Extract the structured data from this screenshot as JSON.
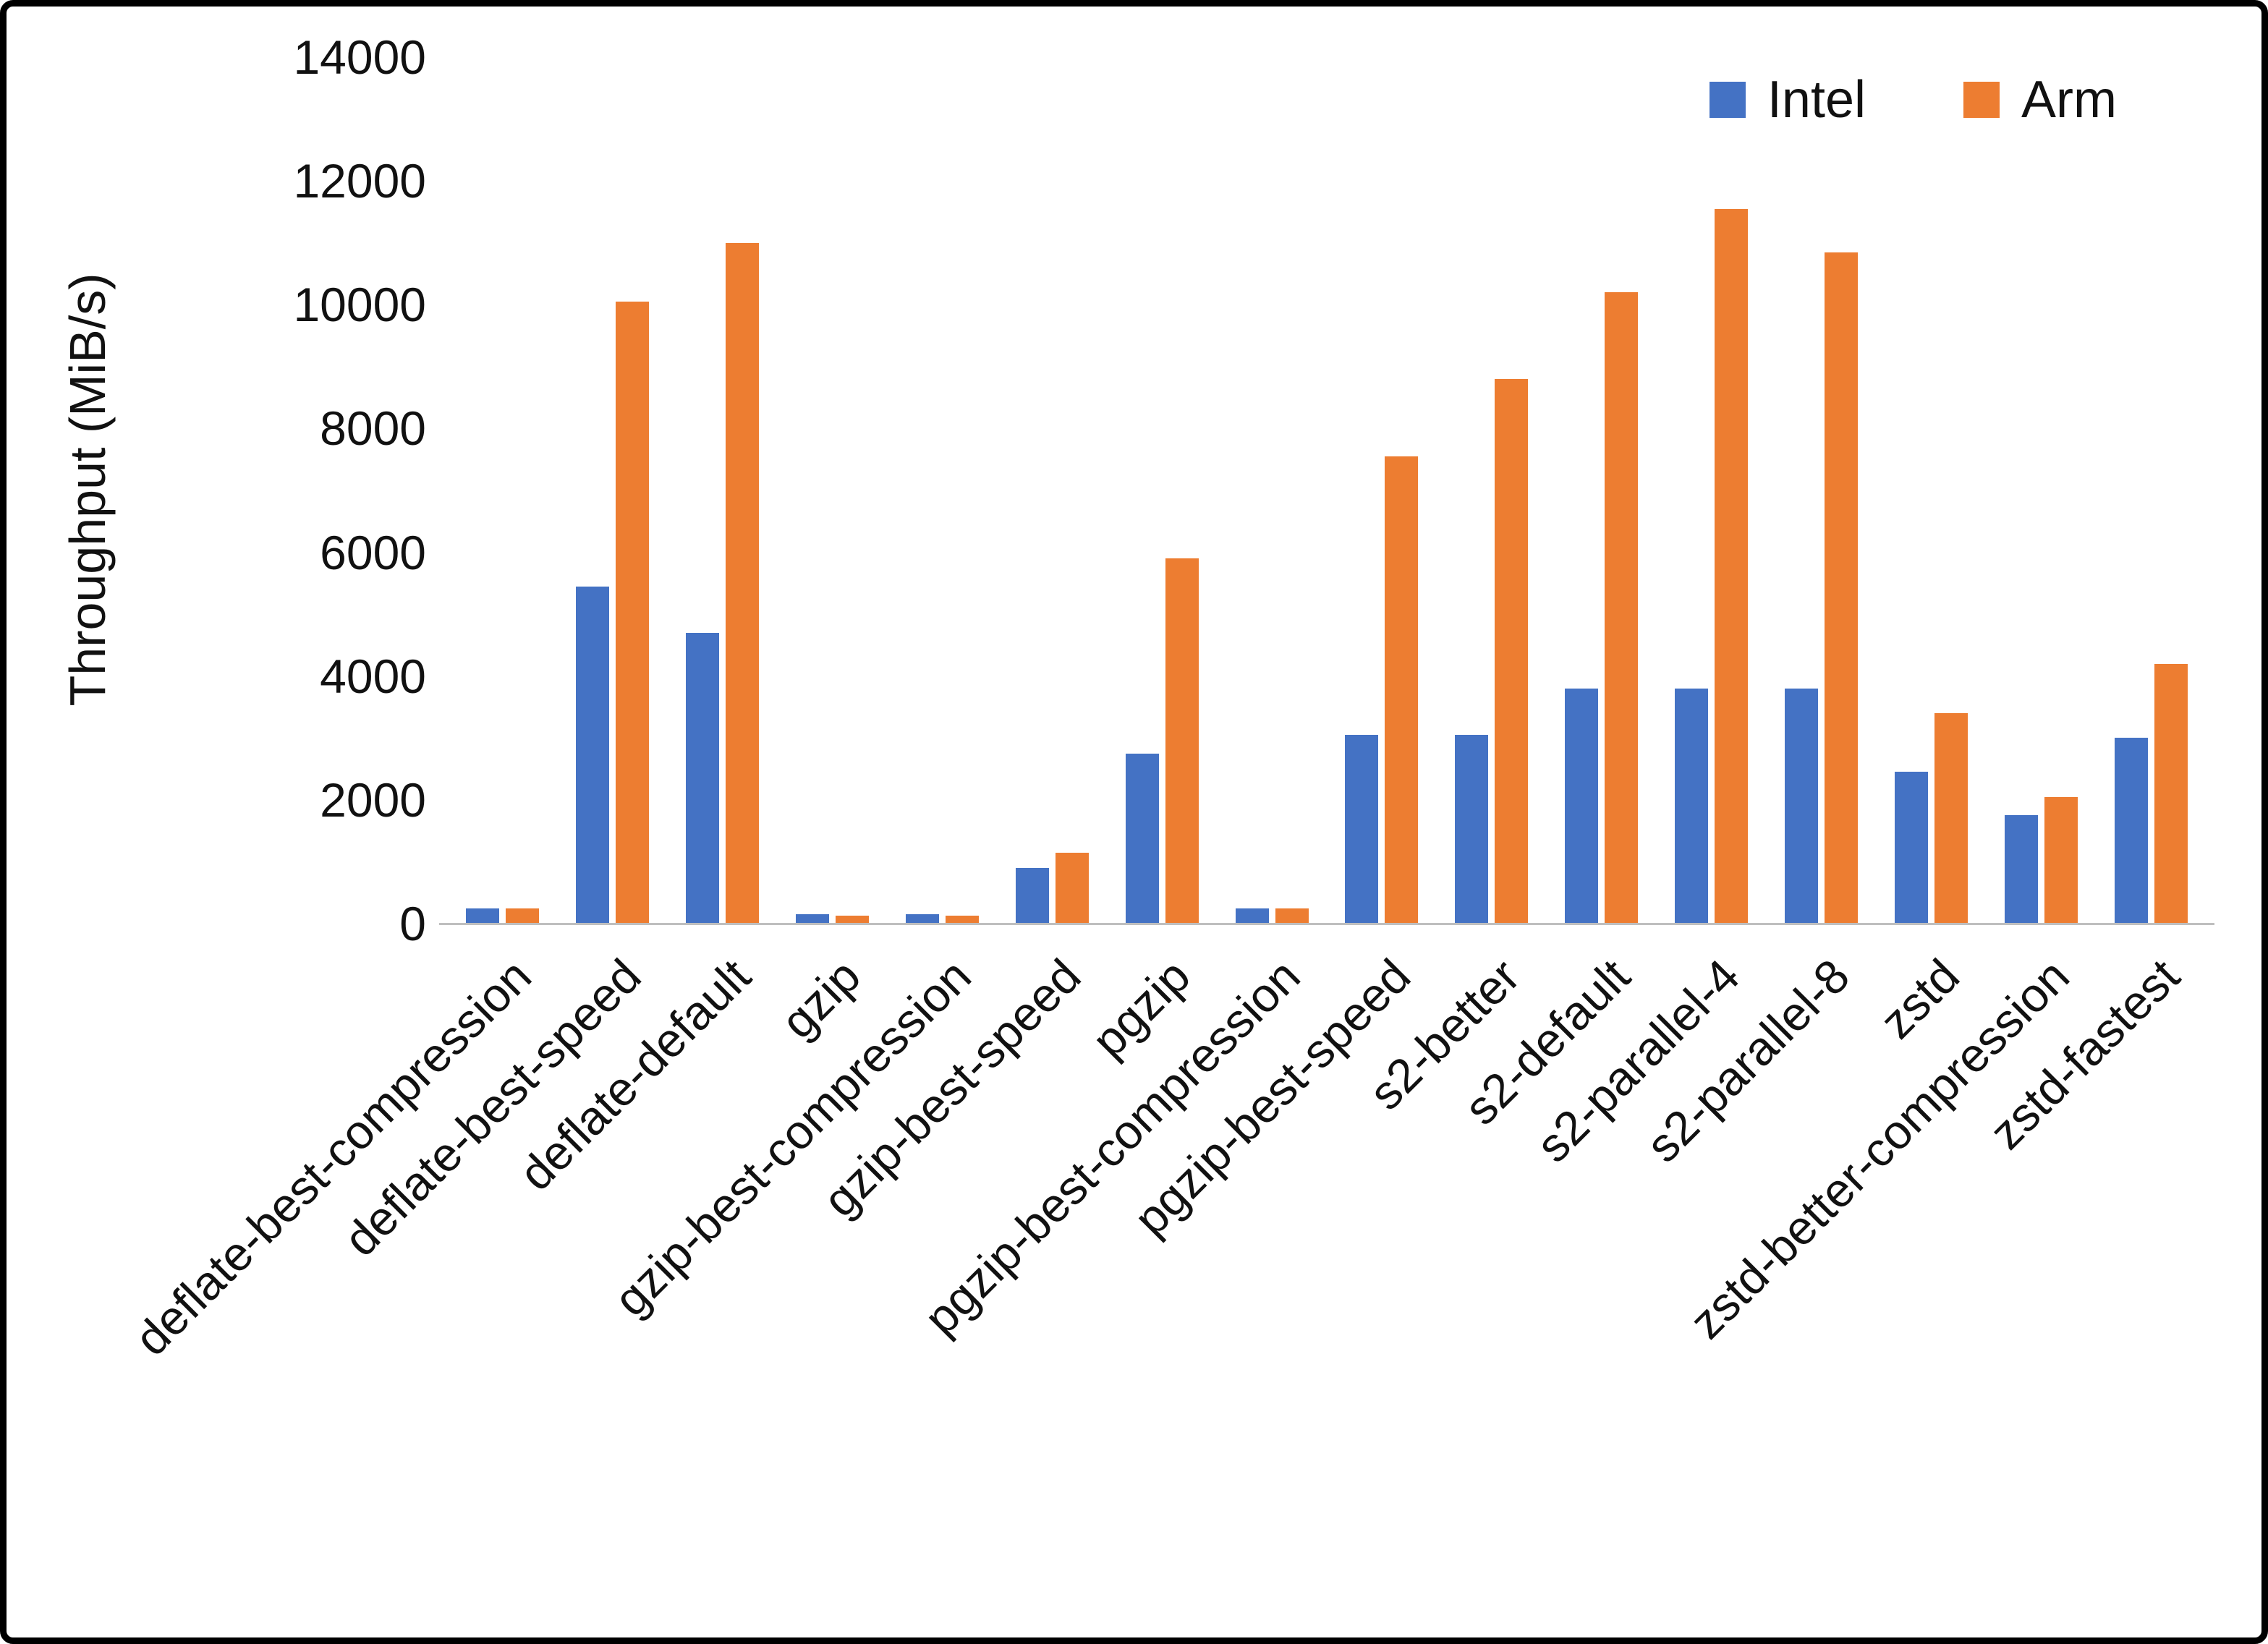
{
  "chart_data": {
    "type": "bar",
    "title": "",
    "xlabel": "",
    "ylabel": "Throughput (MiB/s)",
    "ylim": [
      0,
      14000
    ],
    "yticks": [
      0,
      2000,
      4000,
      6000,
      8000,
      10000,
      12000,
      14000
    ],
    "grid": false,
    "legend_position": "top-right",
    "categories": [
      "deflate-best-compression",
      "deflate-best-speed",
      "deflate-default",
      "gzip",
      "gzip-best-compression",
      "gzip-best-speed",
      "pgzip",
      "pgzip-best-compression",
      "pgzip-best-speed",
      "s2-better",
      "s2-default",
      "s2-parallel-4",
      "s2-parallel-8",
      "zstd",
      "zstd-better-compression",
      "zstd-fastest"
    ],
    "series": [
      {
        "name": "Intel",
        "color": "#4472C4",
        "values": [
          250,
          5450,
          4700,
          150,
          150,
          900,
          2750,
          250,
          3050,
          3050,
          3800,
          3800,
          3800,
          2450,
          1750,
          3000
        ]
      },
      {
        "name": "Arm",
        "color": "#ED7D31",
        "values": [
          250,
          10050,
          11000,
          130,
          130,
          1150,
          5900,
          250,
          7550,
          8800,
          10200,
          11550,
          10850,
          3400,
          2050,
          4200
        ]
      }
    ]
  }
}
